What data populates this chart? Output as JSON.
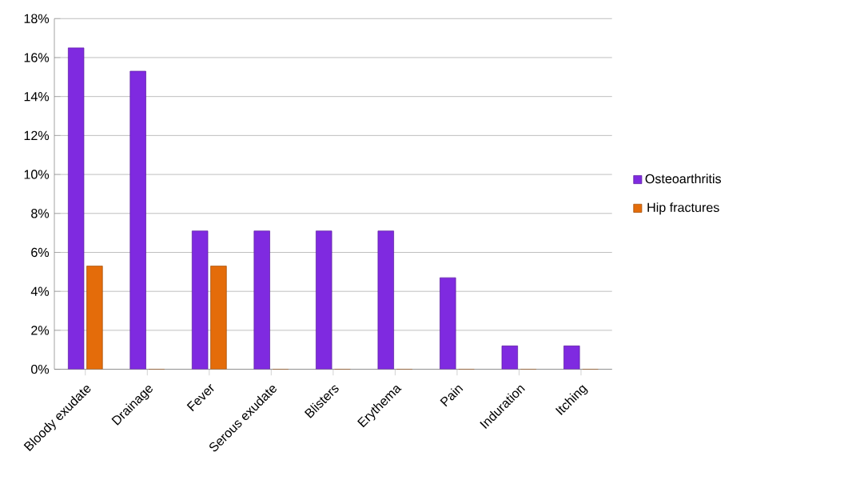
{
  "chart_data": {
    "type": "bar",
    "categories": [
      "Bloody exudate",
      "Drainage",
      "Fever",
      "Serous exudate",
      "Blisters",
      "Erythema",
      "Pain",
      "Induration",
      "Itching"
    ],
    "series": [
      {
        "name": "Osteoarthritis",
        "color": "#7f2ae0",
        "values": [
          16.5,
          15.3,
          7.1,
          7.1,
          7.1,
          7.1,
          4.7,
          1.2,
          1.2
        ]
      },
      {
        "name": "Hip fractures",
        "color": "#e46c0a",
        "values": [
          5.3,
          0,
          5.3,
          0,
          0,
          0,
          0,
          0,
          0
        ]
      }
    ],
    "ylim": [
      0,
      18
    ],
    "yticks": [
      {
        "value": 0,
        "label": "0%"
      },
      {
        "value": 2,
        "label": "2%"
      },
      {
        "value": 4,
        "label": "4%"
      },
      {
        "value": 6,
        "label": "6%"
      },
      {
        "value": 8,
        "label": "8%"
      },
      {
        "value": 10,
        "label": "10%"
      },
      {
        "value": 12,
        "label": "12%"
      },
      {
        "value": 14,
        "label": "14%"
      },
      {
        "value": 16,
        "label": "16%"
      },
      {
        "value": 18,
        "label": "18%"
      }
    ],
    "grid": "y",
    "legend": "right"
  }
}
